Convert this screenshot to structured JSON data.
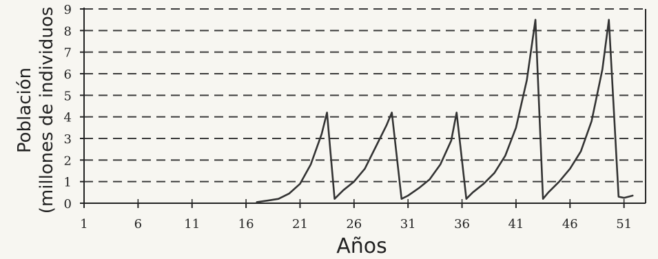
{
  "chart_data": {
    "type": "line",
    "xlabel": "Años",
    "ylabel_line1": "Población",
    "ylabel_line2": "(millones de individuos",
    "xlim": [
      1,
      53
    ],
    "ylim": [
      0,
      9
    ],
    "xticks": [
      1,
      6,
      11,
      16,
      21,
      26,
      31,
      36,
      41,
      46,
      51
    ],
    "yticks": [
      0,
      1,
      2,
      3,
      4,
      5,
      6,
      7,
      8,
      9
    ],
    "grid": "horizontal-dashed",
    "series": [
      {
        "color": "#333333",
        "points": [
          [
            17,
            0.05
          ],
          [
            18,
            0.12
          ],
          [
            19,
            0.2
          ],
          [
            20,
            0.45
          ],
          [
            21,
            0.9
          ],
          [
            22,
            1.8
          ],
          [
            23,
            3.2
          ],
          [
            23.5,
            4.2
          ],
          [
            24.2,
            0.2
          ],
          [
            25,
            0.6
          ],
          [
            26,
            1.0
          ],
          [
            27,
            1.6
          ],
          [
            28,
            2.6
          ],
          [
            29,
            3.6
          ],
          [
            29.5,
            4.2
          ],
          [
            30.4,
            0.2
          ],
          [
            31,
            0.35
          ],
          [
            32,
            0.7
          ],
          [
            33,
            1.1
          ],
          [
            34,
            1.8
          ],
          [
            35,
            2.9
          ],
          [
            35.5,
            4.2
          ],
          [
            36.4,
            0.2
          ],
          [
            37,
            0.5
          ],
          [
            38,
            0.9
          ],
          [
            39,
            1.4
          ],
          [
            40,
            2.2
          ],
          [
            41,
            3.5
          ],
          [
            42,
            5.7
          ],
          [
            42.8,
            8.5
          ],
          [
            43.5,
            0.2
          ],
          [
            44,
            0.5
          ],
          [
            45,
            1.0
          ],
          [
            46,
            1.6
          ],
          [
            47,
            2.4
          ],
          [
            48,
            3.8
          ],
          [
            49,
            6.2
          ],
          [
            49.6,
            8.5
          ],
          [
            50.5,
            0.3
          ],
          [
            51,
            0.25
          ],
          [
            51.8,
            0.35
          ]
        ]
      }
    ]
  }
}
